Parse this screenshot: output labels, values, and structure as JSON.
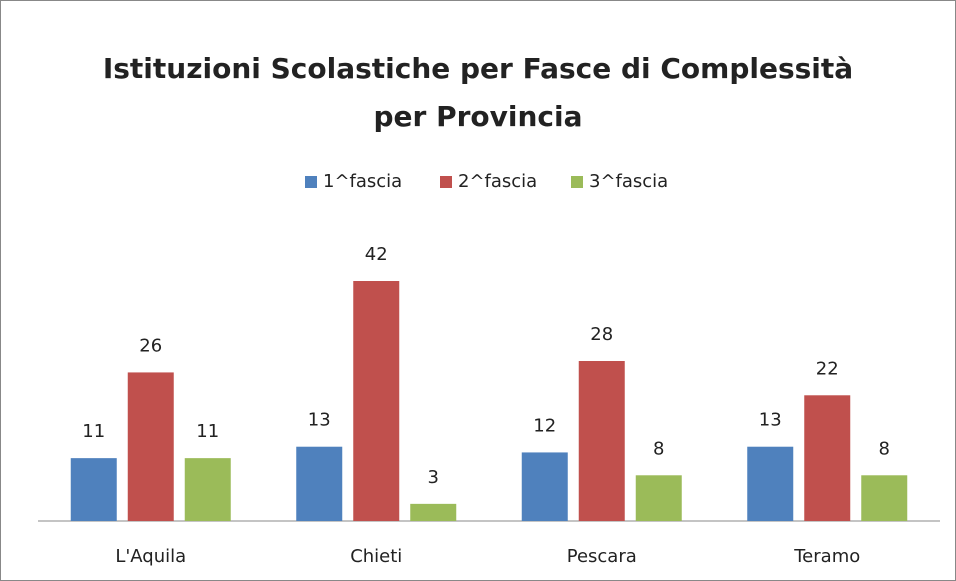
{
  "chart_data": {
    "type": "bar",
    "title": [
      "Istituzioni Scolastiche per Fasce di Complessità",
      "per Provincia"
    ],
    "categories": [
      "L'Aquila",
      "Chieti",
      "Pescara",
      "Teramo"
    ],
    "series": [
      {
        "name": "1^fascia",
        "color": "#4f81bd",
        "values": [
          11,
          13,
          12,
          13
        ]
      },
      {
        "name": "2^fascia",
        "color": "#c0504d",
        "values": [
          26,
          42,
          28,
          22
        ]
      },
      {
        "name": "3^fascia",
        "color": "#9bbb59",
        "values": [
          11,
          3,
          8,
          8
        ]
      }
    ],
    "legend": "top"
  }
}
